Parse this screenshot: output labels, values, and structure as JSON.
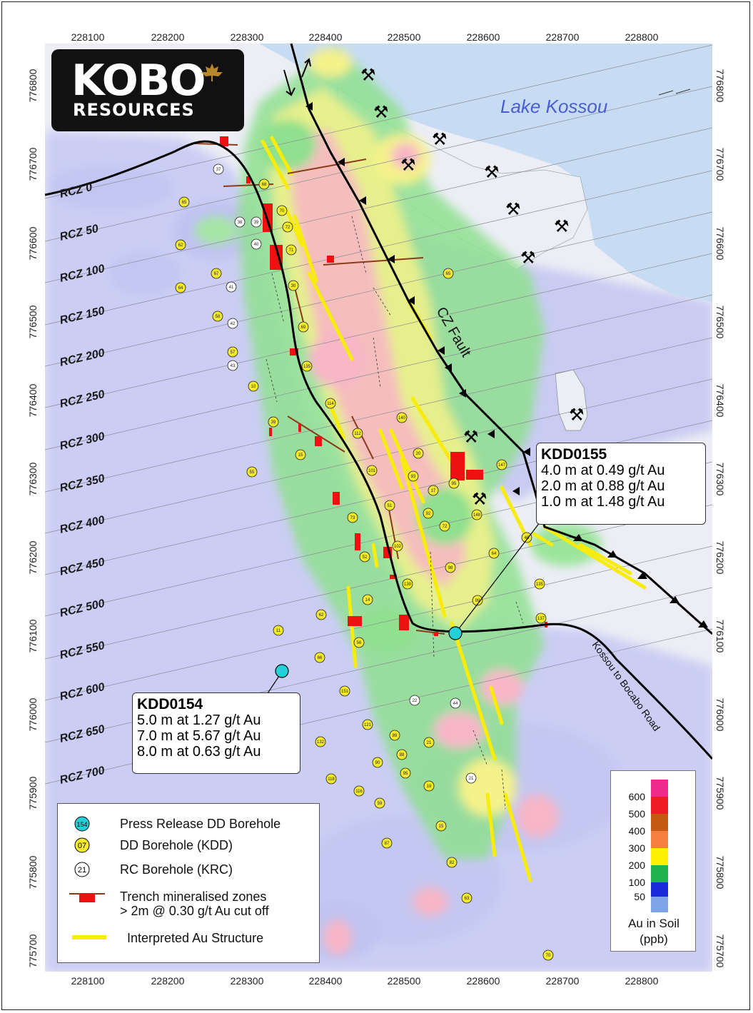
{
  "logo": {
    "main": "KOBO",
    "sub": "RESOURCES"
  },
  "x_ticks": [
    "228100",
    "228200",
    "228300",
    "228400",
    "228500",
    "228600",
    "228700",
    "228800"
  ],
  "y_ticks": [
    "776800",
    "776700",
    "776600",
    "776500",
    "776400",
    "776300",
    "776200",
    "776100",
    "776000",
    "775900",
    "775800",
    "775700"
  ],
  "rcz_labels": [
    "RCZ 0",
    "RCZ 50",
    "RCZ 100",
    "RCZ 150",
    "RCZ 200",
    "RCZ 250",
    "RCZ 300",
    "RCZ 350",
    "RCZ 400",
    "RCZ 450",
    "RCZ 500",
    "RCZ 550",
    "RCZ 600",
    "RCZ 650",
    "RCZ 700"
  ],
  "place_labels": {
    "lake": "Lake Kossou",
    "fault": "CZ Fault",
    "road": "Kossou to Bocabo Road"
  },
  "callouts": {
    "kdd0155": {
      "title": "KDD0155",
      "lines": [
        "4.0 m at 0.49 g/t Au",
        "2.0 m at 0.88 g/t Au",
        "1.0 m at 1.48 g/t Au"
      ]
    },
    "kdd0154": {
      "title": "KDD0154",
      "lines": [
        "5.0 m at 1.27 g/t Au",
        "7.0 m at 5.67 g/t Au",
        "8.0 m at 0.63 g/t Au"
      ]
    }
  },
  "legend": {
    "items": [
      {
        "symbol": "154",
        "label": "Press Release DD Borehole"
      },
      {
        "symbol": "07",
        "label": "DD Borehole (KDD)"
      },
      {
        "symbol": "21",
        "label": "RC Borehole (KRC)"
      },
      {
        "symbol": "",
        "label": "Trench mineralised zones\n> 2m @ 0.30 g/t Au cut off"
      },
      {
        "symbol": "",
        "label": "Interpreted Au Structure"
      }
    ],
    "trench_label_line1": "Trench mineralised zones",
    "trench_label_line2": "> 2m @ 0.30 g/t Au cut off"
  },
  "soil_scale": {
    "title_line1": "Au in Soil",
    "title_line2": "(ppb)",
    "levels": [
      {
        "label": "600",
        "color": "#ee2a8c"
      },
      {
        "label": "500",
        "color": "#ee1c24"
      },
      {
        "label": "400",
        "color": "#c45a12"
      },
      {
        "label": "300",
        "color": "#f47f3f"
      },
      {
        "label": "200",
        "color": "#fef200"
      },
      {
        "label": "100",
        "color": "#22b24c"
      },
      {
        "label": "50",
        "color": "#1b2ad8"
      }
    ],
    "base_color": "#7da3e8"
  },
  "boreholes": {
    "dd": [
      "65",
      "62",
      "67",
      "64",
      "58",
      "57",
      "10",
      "39",
      "15",
      "55",
      "68",
      "70",
      "72",
      "71",
      "30",
      "69",
      "135",
      "114",
      "112",
      "101",
      "51",
      "73",
      "52",
      "102",
      "139",
      "14",
      "56",
      "140",
      "20",
      "93",
      "17",
      "95",
      "92",
      "72",
      "98",
      "99",
      "148",
      "64",
      "135",
      "137",
      "147",
      "66",
      "62",
      "151",
      "121",
      "132",
      "118",
      "116",
      "59",
      "89",
      "88",
      "90",
      "95",
      "21",
      "18",
      "15",
      "82",
      "63",
      "87",
      "11",
      "70",
      "65",
      "40"
    ],
    "rc": [
      "37",
      "38",
      "39",
      "40",
      "41",
      "42",
      "43",
      "44",
      "22",
      "21",
      "23",
      "19"
    ],
    "press_release": [
      "KDD0155",
      "KDD0154"
    ]
  },
  "colors": {
    "lake": "#c4dcf4",
    "low_soil": "#c8ccf4",
    "background_land": "#e9ecf6",
    "fault": "#000000",
    "structure": "#f7ec0c",
    "trench": "#ee1111"
  }
}
